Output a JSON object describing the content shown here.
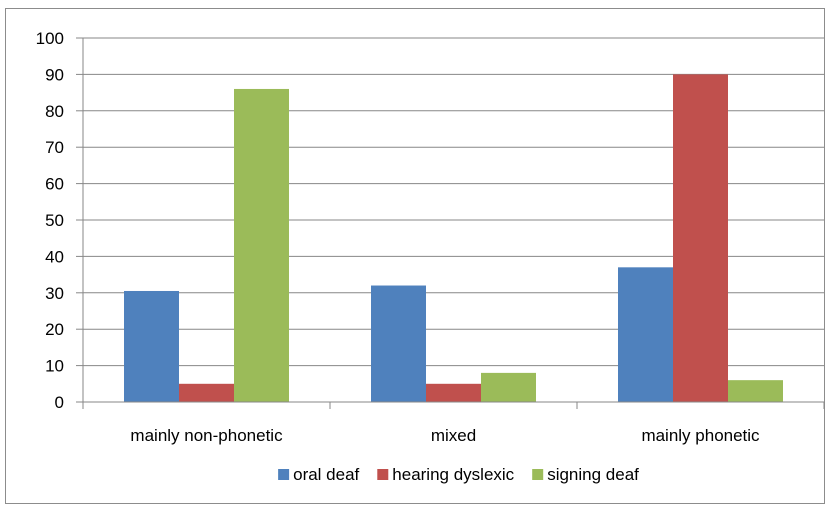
{
  "chart_data": {
    "type": "bar",
    "categories": [
      "mainly non-phonetic",
      "mixed",
      "mainly phonetic"
    ],
    "series": [
      {
        "name": "oral deaf",
        "color": "#4f81bd",
        "values": [
          30.5,
          32,
          37
        ]
      },
      {
        "name": "hearing dyslexic",
        "color": "#c0504d",
        "values": [
          5,
          5,
          90
        ]
      },
      {
        "name": "signing deaf",
        "color": "#9bbb59",
        "values": [
          86,
          8,
          6
        ]
      }
    ],
    "ylim": [
      0,
      100
    ],
    "yticks": [
      "0",
      "10",
      "20",
      "30",
      "40",
      "50",
      "60",
      "70",
      "80",
      "90",
      "100"
    ],
    "grid": true,
    "legend": "bottom",
    "title": "",
    "xlabel": "",
    "ylabel": ""
  }
}
